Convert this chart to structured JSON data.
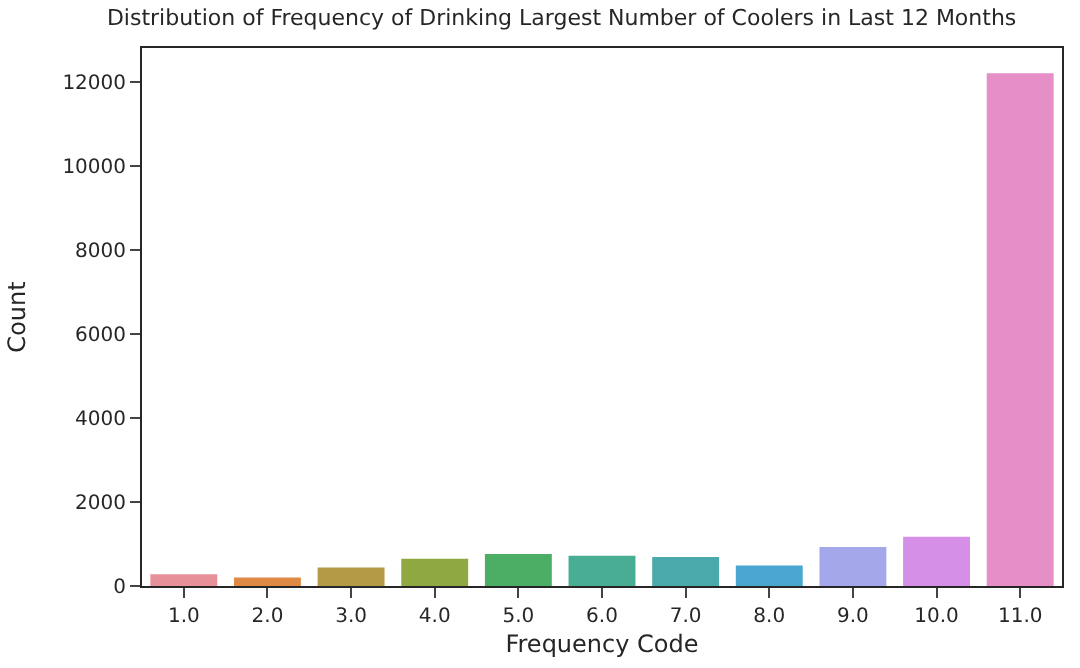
{
  "chart_data": {
    "type": "bar",
    "title": "Distribution of Frequency of Drinking Largest Number of Coolers in Last 12 Months",
    "xlabel": "Frequency Code",
    "ylabel": "Count",
    "categories": [
      "1.0",
      "2.0",
      "3.0",
      "4.0",
      "5.0",
      "6.0",
      "7.0",
      "8.0",
      "9.0",
      "10.0",
      "11.0"
    ],
    "values": [
      280,
      200,
      440,
      650,
      760,
      720,
      690,
      490,
      930,
      1170,
      12200
    ],
    "colors": [
      "#e8909a",
      "#de8a45",
      "#b49a46",
      "#8fa842",
      "#4bae64",
      "#49ad93",
      "#4aa9ab",
      "#4aa7d1",
      "#a4a8ea",
      "#d58fe6",
      "#e68fc6"
    ],
    "ylim": [
      0,
      12800
    ],
    "yticks": [
      0,
      2000,
      4000,
      6000,
      8000,
      10000,
      12000
    ]
  }
}
